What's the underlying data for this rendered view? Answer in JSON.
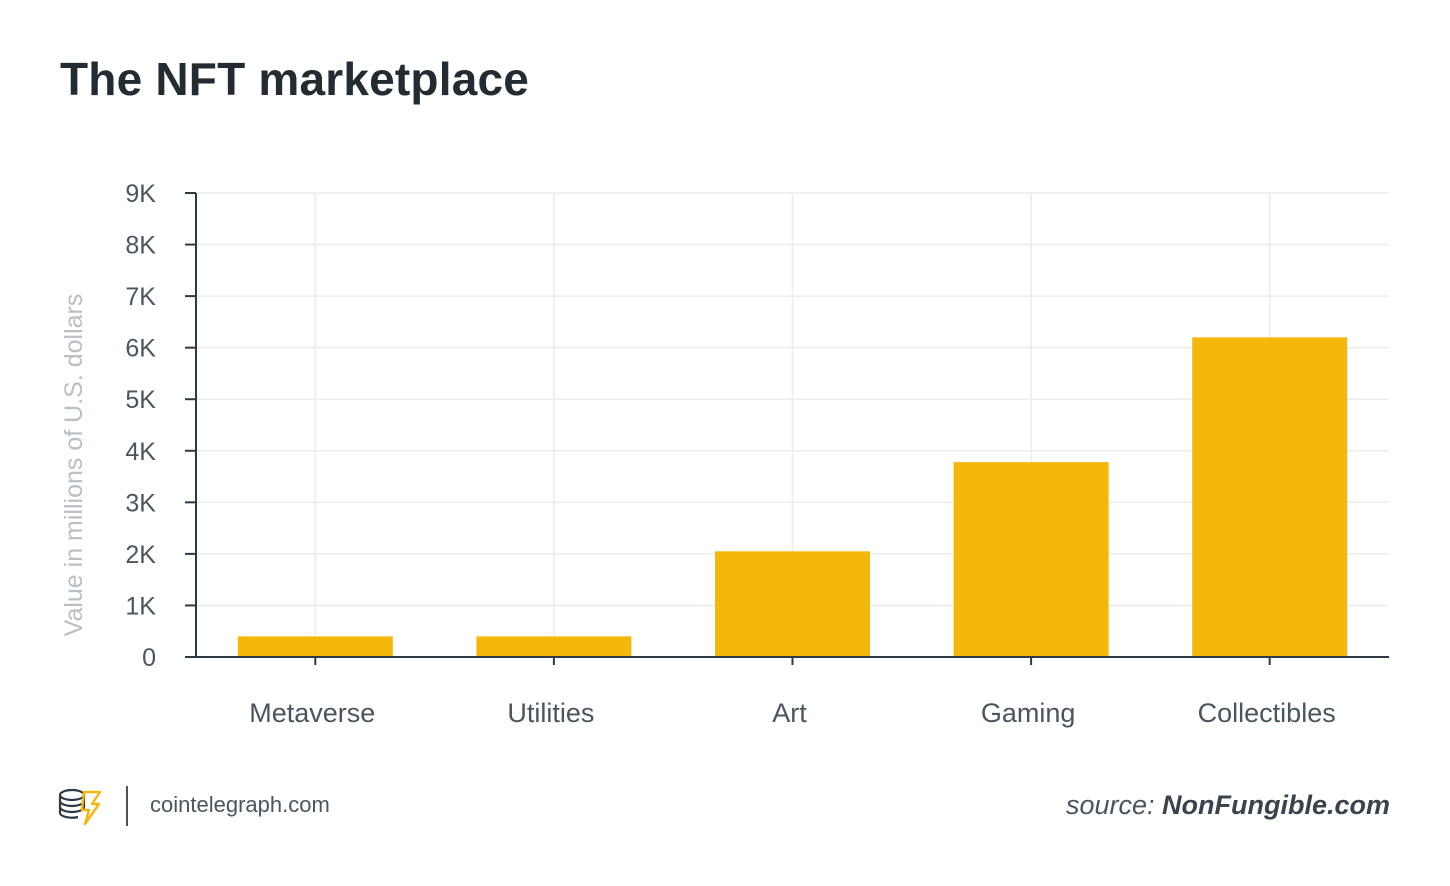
{
  "title": "The NFT marketplace",
  "footer": {
    "site": "cointelegraph.com",
    "source_prefix": "source:",
    "source_name": "NonFungible.com",
    "logo_icon": "cointelegraph-logo-icon"
  },
  "colors": {
    "bar": "#f4b80c",
    "axis": "#2f3a44",
    "grid": "#ececec",
    "tick_text": "#4a5560",
    "ylabel_text": "#b8bfc5"
  },
  "chart_data": {
    "type": "bar",
    "title": "The NFT marketplace",
    "xlabel": "",
    "ylabel": "Value in millions of U.S. dollars",
    "categories": [
      "Metaverse",
      "Utilities",
      "Art",
      "Gaming",
      "Collectibles"
    ],
    "values": [
      400,
      400,
      2050,
      3780,
      6200
    ],
    "ylim": [
      0,
      9000
    ],
    "yticks": [
      0,
      1000,
      2000,
      3000,
      4000,
      5000,
      6000,
      7000,
      8000,
      9000
    ],
    "ytick_labels": [
      "0",
      "1K",
      "2K",
      "3K",
      "4K",
      "5K",
      "6K",
      "7K",
      "8K",
      "9K"
    ],
    "grid": true,
    "legend": "none"
  }
}
